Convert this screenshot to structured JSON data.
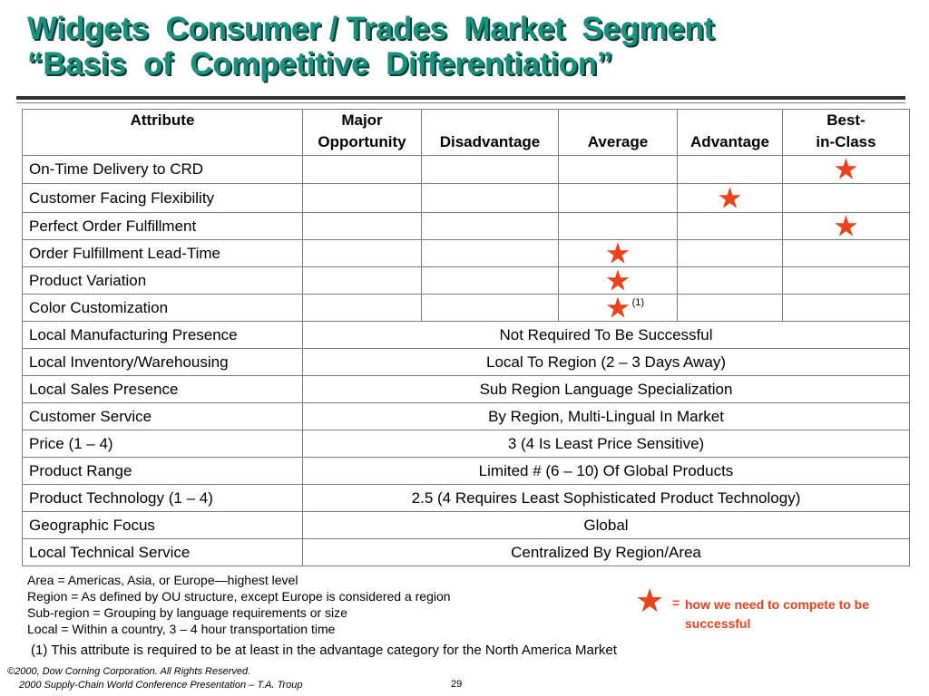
{
  "title": {
    "line1": "Widgets  Consumer / Trades  Market  Segment",
    "line2": "“Basis  of  Competitive  Differentiation”"
  },
  "table": {
    "headers": [
      [
        "Attribute"
      ],
      [
        "Major",
        "Opportunity"
      ],
      [
        "",
        "Disadvantage"
      ],
      [
        "",
        "Average"
      ],
      [
        "",
        "Advantage"
      ],
      [
        "Best-",
        "in-Class"
      ]
    ],
    "rated_rows": [
      {
        "label": "On-Time Delivery to CRD",
        "marked_column": "Best-in-Class"
      },
      {
        "label": "Customer Facing Flexibility",
        "marked_column": "Advantage"
      },
      {
        "label": "Perfect Order Fulfillment",
        "marked_column": "Best-in-Class"
      },
      {
        "label": "Order Fulfillment Lead-Time",
        "marked_column": "Average"
      },
      {
        "label": "Product Variation",
        "marked_column": "Average"
      },
      {
        "label": "Color Customization",
        "marked_column": "Average",
        "footnote": "(1)"
      }
    ],
    "text_rows": [
      {
        "label": "Local Manufacturing Presence",
        "value": "Not Required To Be Successful"
      },
      {
        "label": "Local Inventory/Warehousing",
        "value": "Local To Region (2 – 3 Days Away)"
      },
      {
        "label": "Local Sales Presence",
        "value": "Sub Region Language Specialization"
      },
      {
        "label": "Customer Service",
        "value": "By Region, Multi-Lingual In Market"
      },
      {
        "label": "Price (1 – 4)",
        "value": "3 (4 Is Least Price Sensitive)"
      },
      {
        "label": "Product Range",
        "value": "Limited # (6 – 10) Of Global Products"
      },
      {
        "label": "Product Technology (1 – 4)",
        "value": "2.5 (4 Requires Least Sophisticated Product Technology)"
      },
      {
        "label": "Geographic Focus",
        "value": "Global"
      },
      {
        "label": "Local Technical Service",
        "value": "Centralized By Region/Area"
      }
    ]
  },
  "notes": [
    "Area = Americas, Asia, or Europe—highest level",
    "Region = As defined by OU structure, except Europe is considered a region",
    "Sub-region = Grouping by language requirements or size",
    "Local = Within a country, 3 – 4 hour transportation time"
  ],
  "footnote": "(1) This attribute is required to be at least in the advantage category for the North America Market",
  "legend": {
    "symbol": "★",
    "equals": "=",
    "text": "how we need to compete to be successful"
  },
  "footer": {
    "copyright_line1": "©2000, Dow Corning Corporation. All Rights Reserved.",
    "copyright_line2": "2000 Supply-Chain World Conference Presentation – T.A. Troup",
    "page_number": "29"
  },
  "colors": {
    "title": "#18917e",
    "title_shadow": "#0a3a33",
    "star": "#e8431c",
    "border": "#7a7a7a"
  }
}
